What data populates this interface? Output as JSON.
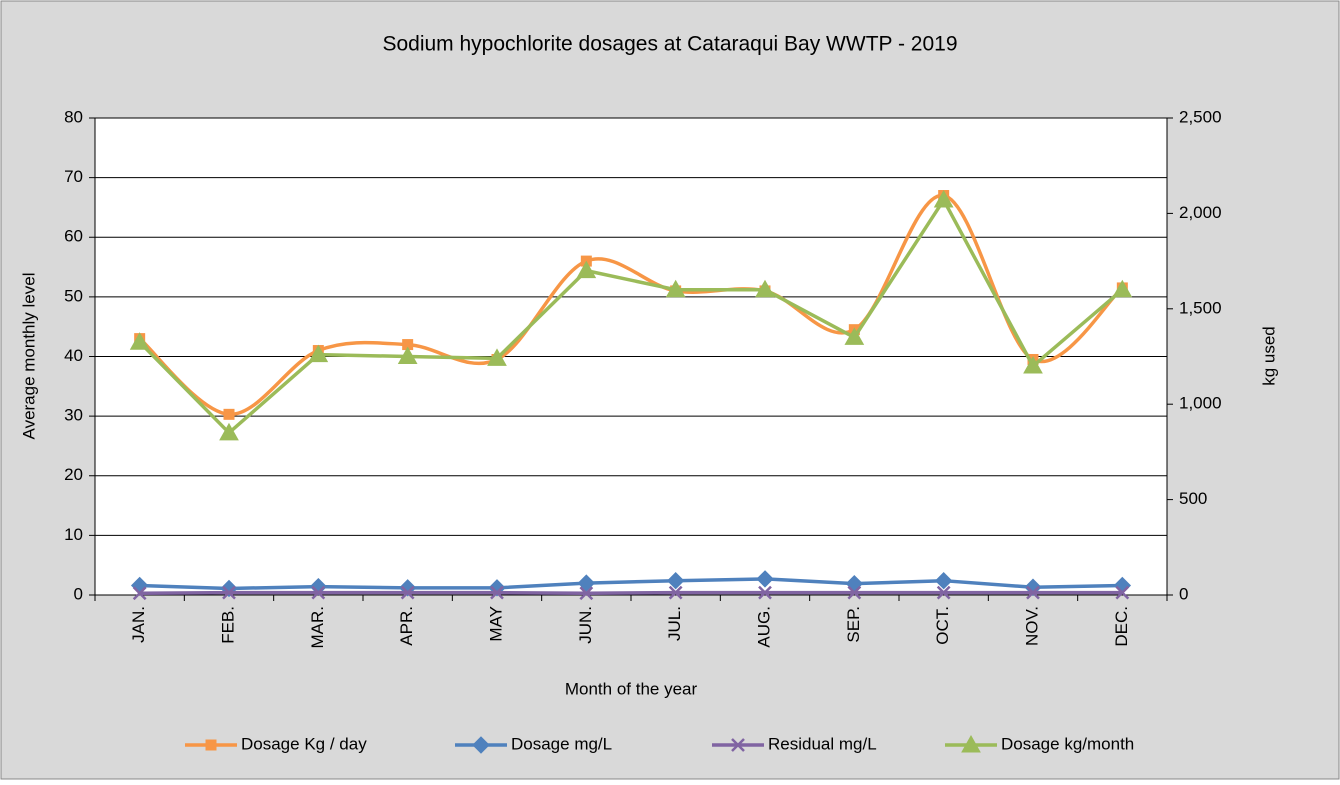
{
  "chart_data": {
    "type": "line",
    "title": "Sodium hypochlorite dosages at Cataraqui Bay WWTP - 2019",
    "x_label": "Month of the year",
    "y_label": "Average monthly level",
    "y2_label": "kg used",
    "categories": [
      "JAN.",
      "FEB.",
      "MAR.",
      "APR.",
      "MAY",
      "JUN.",
      "JUL.",
      "AUG.",
      "SEP.",
      "OCT.",
      "NOV.",
      "DEC."
    ],
    "ylim": [
      0,
      80
    ],
    "yticks": [
      0,
      10,
      20,
      30,
      40,
      50,
      60,
      70,
      80
    ],
    "y2lim": [
      0,
      2500
    ],
    "y2ticks": [
      0,
      500,
      {
        "value": 1000,
        "label": "1,000"
      },
      {
        "value": 1500,
        "label": "1,500"
      },
      {
        "value": 2000,
        "label": "2,000"
      },
      {
        "value": 2500,
        "label": "2,500"
      }
    ],
    "grid": true,
    "legend": "bottom",
    "series": [
      {
        "name": "Dosage Kg / day",
        "color": "#f79646",
        "marker": "square",
        "smooth": true,
        "values": [
          43,
          30.3,
          41,
          42,
          39.5,
          56,
          51,
          51,
          44.5,
          67,
          39.5,
          51.5
        ]
      },
      {
        "name": "Dosage mg/L",
        "color": "#4f81bd",
        "marker": "diamond",
        "smooth": false,
        "values": [
          1.6,
          1.1,
          1.4,
          1.2,
          1.2,
          2.0,
          2.4,
          2.7,
          1.9,
          2.4,
          1.3,
          1.6
        ]
      },
      {
        "name": "Residual mg/L",
        "color": "#8064a2",
        "marker": "x",
        "smooth": false,
        "values": [
          0.3,
          0.4,
          0.4,
          0.4,
          0.4,
          0.3,
          0.4,
          0.4,
          0.4,
          0.4,
          0.4,
          0.4
        ]
      },
      {
        "name": "Dosage kg/month",
        "color": "#9bbb59",
        "marker": "triangle",
        "smooth": false,
        "axis": "y2",
        "values": [
          1325,
          850,
          1260,
          1250,
          1240,
          1700,
          1600,
          1600,
          1350,
          2070,
          1200,
          1600
        ]
      }
    ]
  }
}
